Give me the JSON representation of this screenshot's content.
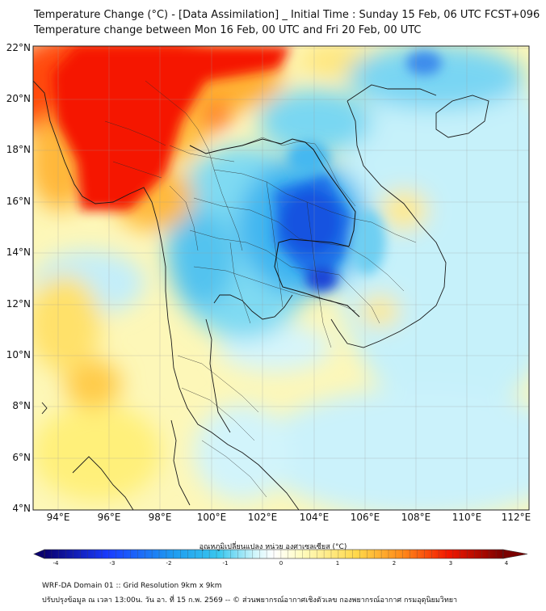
{
  "header": {
    "title_line1": "Temperature Change (°C) - [Data Assimilation] _ Initial Time : Sunday 15 Feb, 06 UTC FCST+096",
    "title_line2": "Temperature change between Mon 16 Feb, 00 UTC and Fri 20 Feb, 00 UTC"
  },
  "map": {
    "lat_labels": [
      "22°N",
      "20°N",
      "18°N",
      "16°N",
      "14°N",
      "12°N",
      "10°N",
      "8°N",
      "6°N",
      "4°N"
    ],
    "lon_labels": [
      "94°E",
      "96°E",
      "98°E",
      "100°E",
      "102°E",
      "104°E",
      "106°E",
      "108°E",
      "110°E",
      "112°E"
    ],
    "lat_range": [
      4,
      22.2
    ],
    "lon_range": [
      93.0,
      112.5
    ]
  },
  "colorbar": {
    "title": "อุณหภูมิเปลี่ยนแปลง หน่วย องศาเซลเซียส (°C)",
    "tick_labels": [
      "-4",
      "-3",
      "-2",
      "-1",
      "0",
      "1",
      "2",
      "3",
      "4"
    ],
    "range": [
      -4,
      4
    ],
    "colors": [
      "#0a0070",
      "#1a3cff",
      "#1e9bf0",
      "#39c7ee",
      "#d2f6fb",
      "#ffffff",
      "#fffcc0",
      "#ffd84a",
      "#ff8a1a",
      "#f21800",
      "#7a0000"
    ]
  },
  "footer": {
    "line1": "WRF-DA Domain 01 :: Grid Resolution 9km x 9km",
    "line2": "ปรับปรุงข้อมูล ณ เวลา 13:00น. วัน อา. ที่ 15 ก.พ. 2569 -- © ส่วนพยากรณ์อากาศเชิงตัวเลข กองพยากรณ์อากาศ กรมอุตุนิยมวิทยา"
  }
}
